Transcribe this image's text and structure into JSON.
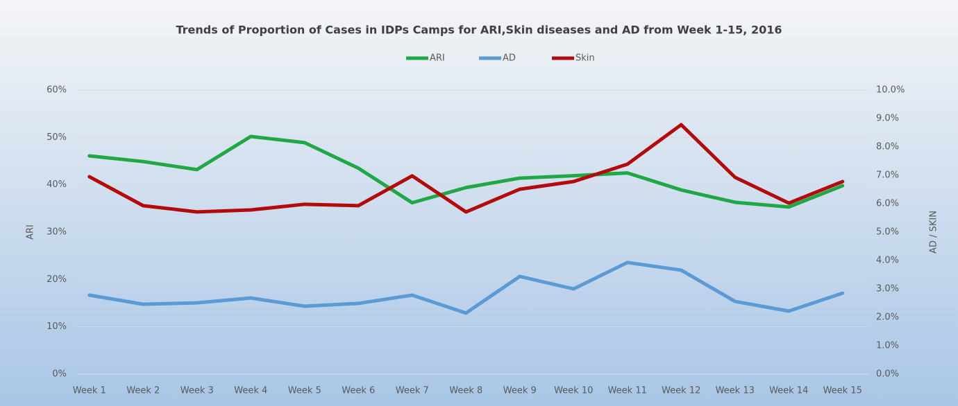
{
  "chart_data": {
    "type": "line",
    "title": "Trends of Proportion of Cases in IDPs Camps for ARI,Skin diseases and AD from Week 1-15, 2016",
    "categories": [
      "Week 1",
      "Week 2",
      "Week 3",
      "Week 4",
      "Week 5",
      "Week 6",
      "Week 7",
      "Week 8",
      "Week 9",
      "Week 10",
      "Week 11",
      "Week 12",
      "Week 13",
      "Week 14",
      "Week 15"
    ],
    "series": [
      {
        "name": "ARI",
        "color": "#1fa845",
        "axis": "y",
        "values": [
          46.1,
          44.9,
          43.2,
          50.2,
          48.9,
          43.5,
          36.2,
          39.4,
          41.4,
          41.9,
          42.5,
          38.9,
          36.3,
          35.3,
          39.8
        ]
      },
      {
        "name": "AD",
        "color": "#5b9bd5",
        "axis": "y2",
        "values": [
          2.78,
          2.46,
          2.51,
          2.68,
          2.39,
          2.49,
          2.78,
          2.15,
          3.44,
          3.0,
          3.93,
          3.66,
          2.56,
          2.22,
          2.85
        ]
      },
      {
        "name": "Skin",
        "color": "#b30b0b",
        "axis": "y2",
        "values": [
          6.95,
          5.93,
          5.71,
          5.78,
          5.98,
          5.93,
          6.98,
          5.71,
          6.51,
          6.78,
          7.39,
          8.78,
          6.93,
          6.02,
          6.78
        ]
      }
    ],
    "ylabel": "ARI",
    "y2label": "AD / SKIN",
    "ylim": [
      0,
      60
    ],
    "yticks": [
      {
        "value": 0,
        "label": "0%"
      },
      {
        "value": 10,
        "label": "10%"
      },
      {
        "value": 20,
        "label": "20%"
      },
      {
        "value": 30,
        "label": "30%"
      },
      {
        "value": 40,
        "label": "40%"
      },
      {
        "value": 50,
        "label": "50%"
      },
      {
        "value": 60,
        "label": "60%"
      }
    ],
    "y2lim": [
      0,
      10
    ],
    "y2ticks": [
      {
        "value": 0,
        "label": "0.0%"
      },
      {
        "value": 1,
        "label": "1.0%"
      },
      {
        "value": 2,
        "label": "2.0%"
      },
      {
        "value": 3,
        "label": "3.0%"
      },
      {
        "value": 4,
        "label": "4.0%"
      },
      {
        "value": 5,
        "label": "5.0%"
      },
      {
        "value": 6,
        "label": "6.0%"
      },
      {
        "value": 7,
        "label": "7.0%"
      },
      {
        "value": 8,
        "label": "8.0%"
      },
      {
        "value": 9,
        "label": "9.0%"
      },
      {
        "value": 10,
        "label": "10.0%"
      }
    ],
    "grid": true,
    "legend": "top"
  }
}
